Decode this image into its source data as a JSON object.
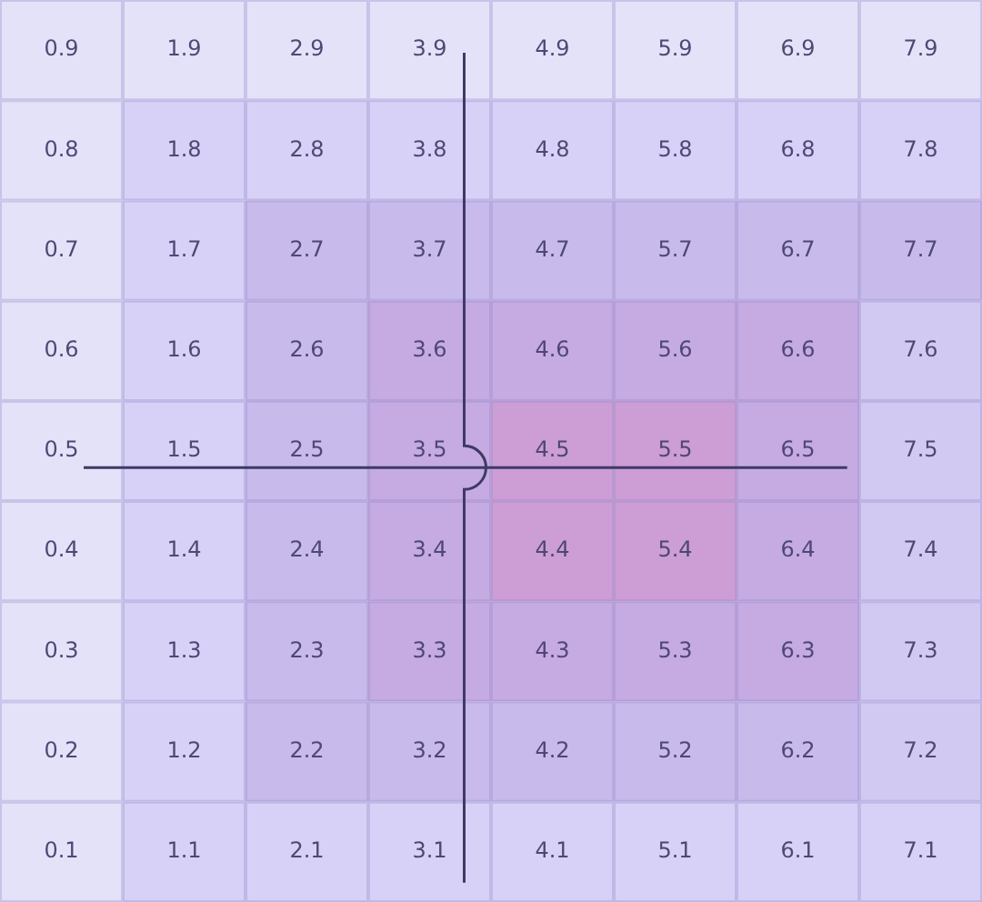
{
  "chart_data": {
    "type": "heatmap",
    "categories": [
      null,
      null,
      null,
      null,
      null,
      null,
      null,
      null
    ],
    "y_categories": [
      null,
      null,
      null,
      null,
      null,
      null,
      null,
      null,
      null
    ],
    "cells": [
      [
        0.9,
        1.9,
        2.9,
        3.9,
        4.9,
        5.9,
        6.9,
        7.9
      ],
      [
        0.8,
        1.8,
        2.8,
        3.8,
        4.8,
        5.8,
        6.8,
        7.8
      ],
      [
        0.7,
        1.7,
        2.7,
        3.7,
        4.7,
        5.7,
        6.7,
        7.7
      ],
      [
        0.6,
        1.6,
        2.6,
        3.6,
        4.6,
        5.6,
        6.6,
        7.6
      ],
      [
        0.5,
        1.5,
        2.5,
        3.5,
        4.5,
        5.5,
        6.5,
        7.5
      ],
      [
        0.4,
        1.4,
        2.4,
        3.4,
        4.4,
        5.4,
        6.4,
        7.4
      ],
      [
        0.3,
        1.3,
        2.3,
        3.3,
        4.3,
        5.3,
        6.3,
        7.3
      ],
      [
        0.2,
        1.2,
        2.2,
        3.2,
        4.2,
        5.2,
        6.2,
        7.2
      ],
      [
        0.1,
        1.1,
        2.1,
        3.1,
        4.1,
        5.1,
        6.1,
        7.1
      ]
    ],
    "colors": [
      [
        "#e4e2f9",
        "#e4e2f9",
        "#e4e2f9",
        "#e4e2f9",
        "#e4e2f9",
        "#e4e2f9",
        "#e4e2f9",
        "#e4e2f9"
      ],
      [
        "#e4e2f9",
        "#d7d1f7",
        "#d7d1f7",
        "#d7d1f7",
        "#d7d1f7",
        "#d7d1f7",
        "#d7d1f7",
        "#d7d1f7"
      ],
      [
        "#e4e2f9",
        "#d7d1f7",
        "#c9baec",
        "#c9baec",
        "#c9baec",
        "#c9baec",
        "#c9baec",
        "#c9baec"
      ],
      [
        "#e4e2f9",
        "#d7d1f7",
        "#c9baec",
        "#c6aae2",
        "#c6aae2",
        "#c6aae2",
        "#c6aae2",
        "#d1c9f2"
      ],
      [
        "#e4e2f9",
        "#d7d1f7",
        "#c9baec",
        "#c6aae2",
        "#cd9dd6",
        "#cd9dd6",
        "#c6aae2",
        "#d1c9f2"
      ],
      [
        "#e4e2f9",
        "#d7d1f7",
        "#c9baec",
        "#c6aae2",
        "#cd9dd6",
        "#cd9dd6",
        "#c6aae2",
        "#d1c9f2"
      ],
      [
        "#e4e2f9",
        "#d7d1f7",
        "#c9baec",
        "#c6aae2",
        "#c6aae2",
        "#c6aae2",
        "#c6aae2",
        "#d1c9f2"
      ],
      [
        "#e4e2f9",
        "#d7d1f7",
        "#c9baec",
        "#c9baec",
        "#c9baec",
        "#c9baec",
        "#c9baec",
        "#d1c9f2"
      ],
      [
        "#e4e2f9",
        "#d7d1f7",
        "#d7d1f7",
        "#d7d1f7",
        "#d7d1f7",
        "#d7d1f7",
        "#d7d1f7",
        "#d7d1f7"
      ]
    ],
    "data_labels": true
  }
}
